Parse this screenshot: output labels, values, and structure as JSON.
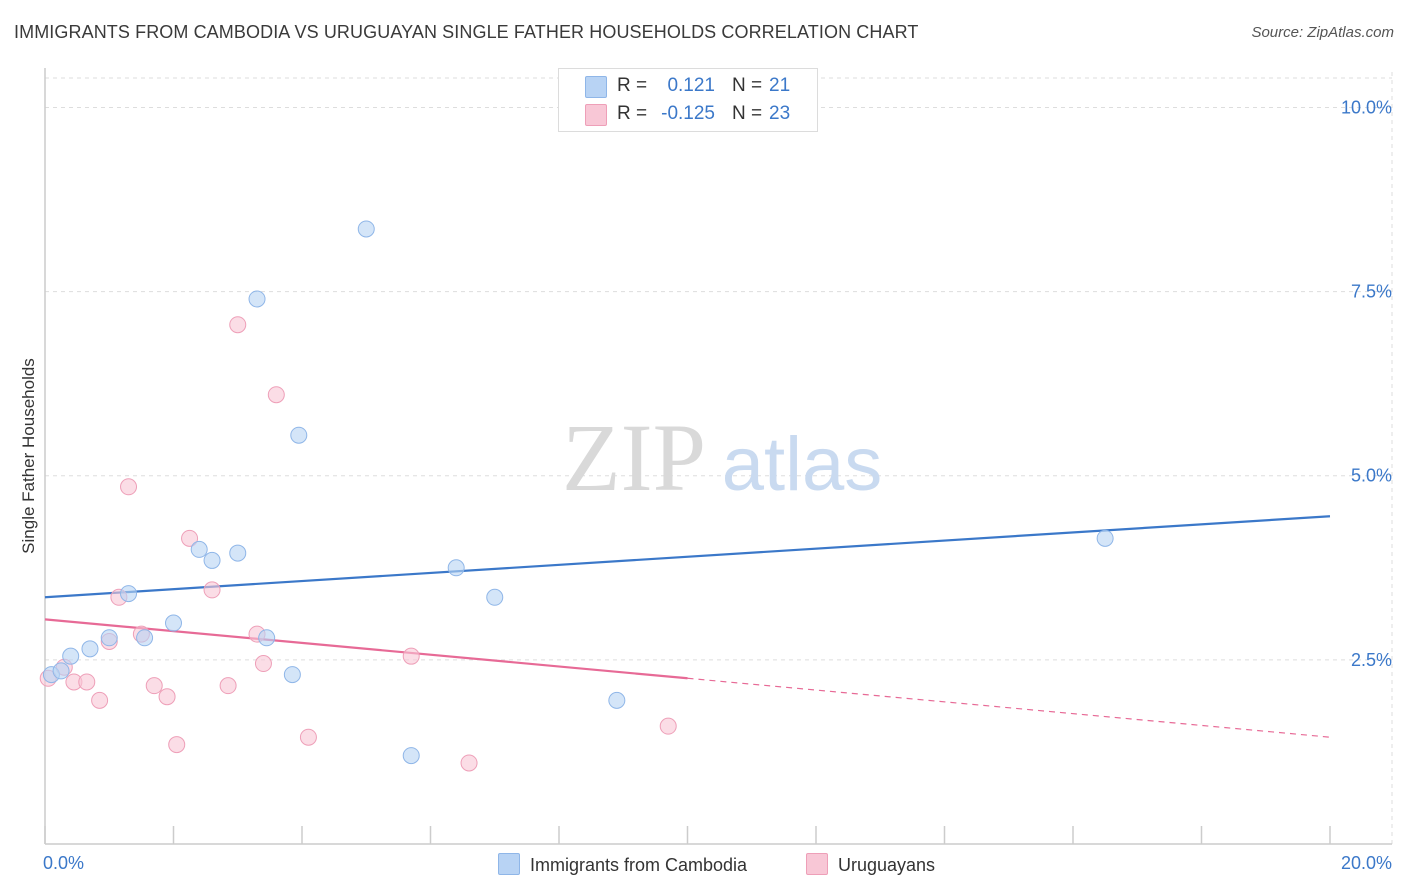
{
  "title": "IMMIGRANTS FROM CAMBODIA VS URUGUAYAN SINGLE FATHER HOUSEHOLDS CORRELATION CHART",
  "source": "Source: ZipAtlas.com",
  "watermark": {
    "zip": "ZIP",
    "atlas": "atlas"
  },
  "legend": {
    "series1": {
      "r_label": "R =",
      "r_value": "0.121",
      "n_label": "N =",
      "n_value": "21"
    },
    "series2": {
      "r_label": "R =",
      "r_value": "-0.125",
      "n_label": "N =",
      "n_value": "23"
    }
  },
  "colors": {
    "blue_fill": "#b8d3f4",
    "blue_stroke": "#8fb6e8",
    "blue_line": "#3b78c9",
    "pink_fill": "#f8c7d6",
    "pink_stroke": "#ee9fb8",
    "pink_line": "#e76a96",
    "axis_value": "#3b78c9",
    "grid": "#dddddd"
  },
  "chart_data": {
    "type": "scatter",
    "title": "IMMIGRANTS FROM CAMBODIA VS URUGUAYAN SINGLE FATHER HOUSEHOLDS CORRELATION CHART",
    "xlabel": "",
    "ylabel": "Single Father Households",
    "xlim": [
      0,
      20
    ],
    "ylim": [
      0,
      10.4
    ],
    "x_tick_labels": {
      "min": "0.0%",
      "max": "20.0%"
    },
    "y_ticks": [
      2.5,
      5.0,
      7.5,
      10.0
    ],
    "y_tick_labels": [
      "2.5%",
      "5.0%",
      "7.5%",
      "10.0%"
    ],
    "grid": true,
    "legend_position": "top-center",
    "series": [
      {
        "name": "Immigrants from Cambodia",
        "color": "blue",
        "points": [
          [
            0.1,
            2.3
          ],
          [
            0.25,
            2.35
          ],
          [
            0.4,
            2.55
          ],
          [
            0.7,
            2.65
          ],
          [
            1.0,
            2.8
          ],
          [
            1.3,
            3.4
          ],
          [
            1.55,
            2.8
          ],
          [
            2.0,
            3.0
          ],
          [
            2.4,
            4.0
          ],
          [
            2.6,
            3.85
          ],
          [
            3.0,
            3.95
          ],
          [
            3.3,
            7.4
          ],
          [
            3.45,
            2.8
          ],
          [
            3.85,
            2.3
          ],
          [
            3.95,
            5.55
          ],
          [
            5.0,
            8.35
          ],
          [
            5.7,
            1.2
          ],
          [
            6.4,
            3.75
          ],
          [
            7.0,
            3.35
          ],
          [
            8.9,
            1.95
          ],
          [
            16.5,
            4.15
          ]
        ],
        "trend": {
          "x": [
            0,
            20
          ],
          "y": [
            3.35,
            4.45
          ],
          "dashed_from": null
        }
      },
      {
        "name": "Uruguayans",
        "color": "pink",
        "points": [
          [
            0.05,
            2.25
          ],
          [
            0.3,
            2.4
          ],
          [
            0.45,
            2.2
          ],
          [
            0.65,
            2.2
          ],
          [
            0.85,
            1.95
          ],
          [
            1.0,
            2.75
          ],
          [
            1.15,
            3.35
          ],
          [
            1.3,
            4.85
          ],
          [
            1.5,
            2.85
          ],
          [
            1.7,
            2.15
          ],
          [
            1.9,
            2.0
          ],
          [
            2.05,
            1.35
          ],
          [
            2.25,
            4.15
          ],
          [
            2.6,
            3.45
          ],
          [
            2.85,
            2.15
          ],
          [
            3.0,
            7.05
          ],
          [
            3.3,
            2.85
          ],
          [
            3.4,
            2.45
          ],
          [
            3.6,
            6.1
          ],
          [
            4.1,
            1.45
          ],
          [
            5.7,
            2.55
          ],
          [
            6.6,
            1.1
          ],
          [
            9.7,
            1.6
          ]
        ],
        "trend": {
          "x": [
            0,
            20
          ],
          "y": [
            3.05,
            1.45
          ],
          "solid_until_x": 10
        }
      }
    ]
  }
}
